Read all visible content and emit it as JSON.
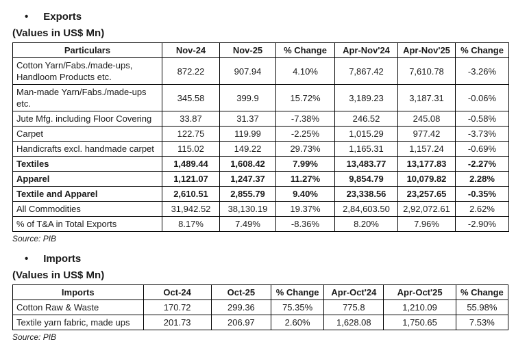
{
  "exports": {
    "title": "Exports",
    "subtitle": "(Values in US$ Mn)",
    "source": "Source: PIB",
    "bullet_glyph": "•",
    "columns": [
      "Particulars",
      "Nov-24",
      "Nov-25",
      "% Change",
      "Apr-Nov'24",
      "Apr-Nov'25",
      "% Change"
    ],
    "rows": [
      {
        "label": "Cotton Yarn/Fabs./made-ups, Handloom Products etc.",
        "values": [
          "872.22",
          "907.94",
          "4.10%",
          "7,867.42",
          "7,610.78",
          "-3.26%"
        ],
        "bold": false
      },
      {
        "label": "Man-made Yarn/Fabs./made-ups etc.",
        "values": [
          "345.58",
          "399.9",
          "15.72%",
          "3,189.23",
          "3,187.31",
          "-0.06%"
        ],
        "bold": false
      },
      {
        "label": "Jute Mfg. including Floor Covering",
        "values": [
          "33.87",
          "31.37",
          "-7.38%",
          "246.52",
          "245.08",
          "-0.58%"
        ],
        "bold": false
      },
      {
        "label": "Carpet",
        "values": [
          "122.75",
          "119.99",
          "-2.25%",
          "1,015.29",
          "977.42",
          "-3.73%"
        ],
        "bold": false
      },
      {
        "label": "Handicrafts excl. handmade carpet",
        "values": [
          "115.02",
          "149.22",
          "29.73%",
          "1,165.31",
          "1,157.24",
          "-0.69%"
        ],
        "bold": false
      },
      {
        "label": "Textiles",
        "values": [
          "1,489.44",
          "1,608.42",
          "7.99%",
          "13,483.77",
          "13,177.83",
          "-2.27%"
        ],
        "bold": true
      },
      {
        "label": "Apparel",
        "values": [
          "1,121.07",
          "1,247.37",
          "11.27%",
          "9,854.79",
          "10,079.82",
          "2.28%"
        ],
        "bold": true
      },
      {
        "label": "Textile and Apparel",
        "values": [
          "2,610.51",
          "2,855.79",
          "9.40%",
          "23,338.56",
          "23,257.65",
          "-0.35%"
        ],
        "bold": true
      },
      {
        "label": "All Commodities",
        "values": [
          "31,942.52",
          "38,130.19",
          "19.37%",
          "2,84,603.50",
          "2,92,072.61",
          "2.62%"
        ],
        "bold": false
      },
      {
        "label": "% of T&A in Total Exports",
        "values": [
          "8.17%",
          "7.49%",
          "-8.36%",
          "8.20%",
          "7.96%",
          "-2.90%"
        ],
        "bold": false
      }
    ]
  },
  "imports": {
    "title": "Imports",
    "subtitle": "(Values in US$ Mn)",
    "source": "Source: PIB",
    "bullet_glyph": "•",
    "columns": [
      "Imports",
      "Oct-24",
      "Oct-25",
      "% Change",
      "Apr-Oct'24",
      "Apr-Oct'25",
      "% Change"
    ],
    "rows": [
      {
        "label": "Cotton Raw & Waste",
        "values": [
          "170.72",
          "299.36",
          "75.35%",
          "775.8",
          "1,210.09",
          "55.98%"
        ],
        "bold": false
      },
      {
        "label": "Textile yarn fabric, made ups",
        "values": [
          "201.73",
          "206.97",
          "2.60%",
          "1,628.08",
          "1,750.65",
          "7.53%"
        ],
        "bold": false
      }
    ]
  }
}
